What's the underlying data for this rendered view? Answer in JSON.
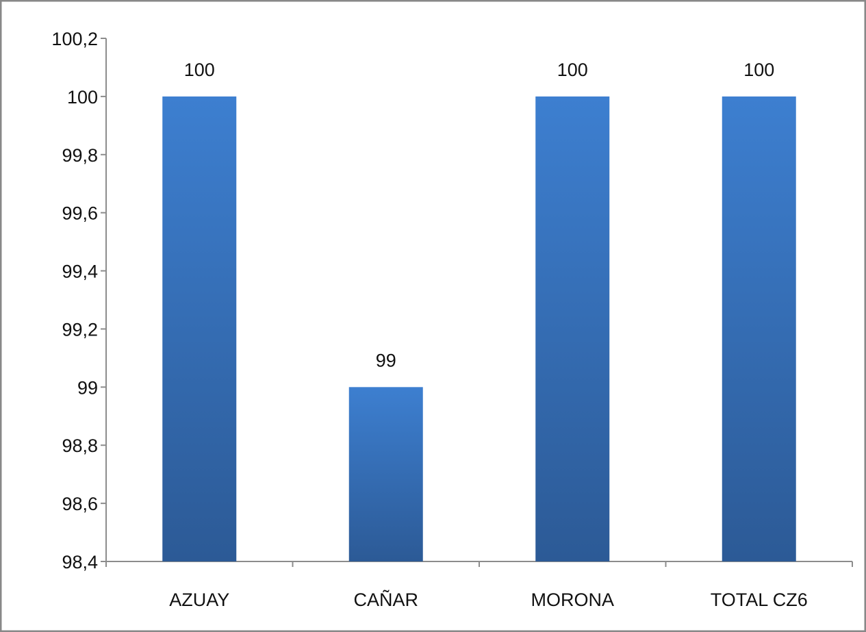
{
  "colors": {
    "bar_top": "#3d7fd0",
    "bar_bottom": "#2c5a96",
    "axis": "#8c8c8c",
    "frame": "#888888",
    "text": "#111111"
  },
  "chart_data": {
    "type": "bar",
    "title": "",
    "xlabel": "",
    "ylabel": "",
    "categories": [
      "AZUAY",
      "CAÑAR",
      "MORONA",
      "TOTAL CZ6"
    ],
    "values": [
      100,
      99,
      100,
      100
    ],
    "data_labels": [
      "100",
      "99",
      "100",
      "100"
    ],
    "ylim": [
      98.4,
      100.2
    ],
    "yticks": [
      98.4,
      98.6,
      98.8,
      99,
      99.2,
      99.4,
      99.6,
      99.8,
      100,
      100.2
    ],
    "ytick_labels": [
      "98,4",
      "98,6",
      "98,8",
      "99",
      "99,2",
      "99,4",
      "99,6",
      "99,8",
      "100",
      "100,2"
    ],
    "grid": false,
    "legend": "none"
  }
}
